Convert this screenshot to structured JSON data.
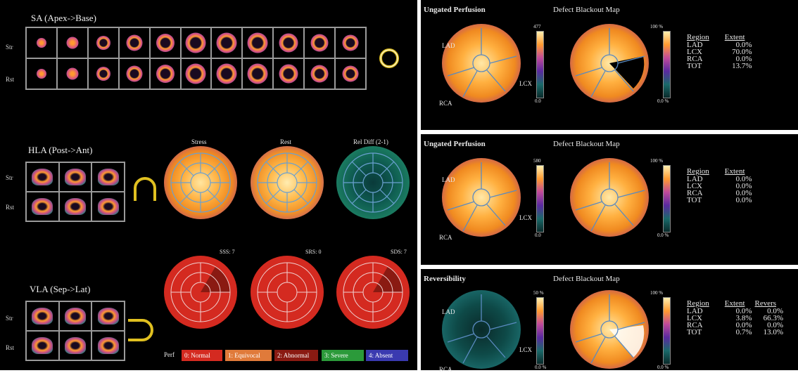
{
  "left": {
    "sa_title": "SA (Apex->Base)",
    "hla_title": "HLA (Post->Ant)",
    "vla_title": "VLA (Sep->Lat)",
    "row_str": "Str",
    "row_rst": "Rst",
    "polar_titles": [
      "Stress",
      "Rest",
      "Rel Diff (2-1)"
    ],
    "scores": [
      "SSS: 7",
      "SRS: 0",
      "SDS: 7"
    ],
    "perf_label": "Perf",
    "perf_legend": [
      {
        "label": "0: Normal",
        "color": "#d42a20"
      },
      {
        "label": "1: Equivocal",
        "color": "#e07a3a"
      },
      {
        "label": "2: Abnormal",
        "color": "#8a1a12"
      },
      {
        "label": "3: Severe",
        "color": "#2b9a3a"
      },
      {
        "label": "4: Absent",
        "color": "#3a3ab0"
      }
    ],
    "orient_apex": "Apex",
    "orient_base": "Base",
    "orient_sep": "Sep",
    "orient_lat": "Lat"
  },
  "panels": [
    {
      "title": "Ungated Perfusion",
      "map_title": "Defect Blackout Map",
      "lad": "LAD",
      "lcx": "LCX",
      "rca": "RCA",
      "scale_top": "477",
      "scale_bottom": "0.0",
      "scale2_top": "100 %",
      "scale2_bottom": "0.0 %",
      "headers": [
        "Region",
        "Extent"
      ],
      "rows": [
        [
          "LAD",
          "0.0%"
        ],
        [
          "LCX",
          "70.0%"
        ],
        [
          "RCA",
          "0.0%"
        ],
        [
          "TOT",
          "13.7%"
        ]
      ]
    },
    {
      "title": "Ungated Perfusion",
      "map_title": "Defect Blackout Map",
      "lad": "LAD",
      "lcx": "LCX",
      "rca": "RCA",
      "scale_top": "580",
      "scale_bottom": "0.0",
      "scale2_top": "100 %",
      "scale2_bottom": "0.0 %",
      "headers": [
        "Region",
        "Extent"
      ],
      "rows": [
        [
          "LAD",
          "0.0%"
        ],
        [
          "LCX",
          "0.0%"
        ],
        [
          "RCA",
          "0.0%"
        ],
        [
          "TOT",
          "0.0%"
        ]
      ]
    },
    {
      "title": "Reversibility",
      "map_title": "Defect Blackout Map",
      "lad": "LAD",
      "lcx": "LCX",
      "rca": "RCA",
      "scale_top": "50 %",
      "scale_bottom": "0.0 %",
      "scale2_top": "100 %",
      "scale2_bottom": "0.0 %",
      "headers": [
        "Region",
        "Extent",
        "Revers"
      ],
      "rows": [
        [
          "LAD",
          "0.0%",
          "0.0%"
        ],
        [
          "LCX",
          "3.8%",
          "66.3%"
        ],
        [
          "RCA",
          "0.0%",
          "0.0%"
        ],
        [
          "TOT",
          "0.7%",
          "13.0%"
        ]
      ]
    }
  ]
}
